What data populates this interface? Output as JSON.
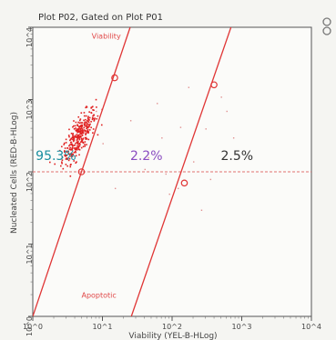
{
  "plot": {
    "title": "Plot P02, Gated on Plot P01",
    "xlabel": "Viability (YEL-B-HLog)",
    "ylabel": "Nucleated Cells (RED-B-HLog)"
  },
  "chart_data": {
    "type": "scatter",
    "title": "Plot P02, Gated on Plot P01",
    "xlabel": "Viability (YEL-B-HLog)",
    "ylabel": "Nucleated Cells (RED-B-HLog)",
    "x_scale": "log",
    "y_scale": "log",
    "xlim": [
      1,
      10000
    ],
    "ylim": [
      1,
      10000
    ],
    "x_ticks": [
      "10^0",
      "10^1",
      "10^2",
      "10^3",
      "10^4"
    ],
    "y_ticks": [
      "10^0",
      "10^1",
      "10^2",
      "10^3",
      "10^4"
    ],
    "quadrant_percentages": [
      {
        "label": "95.3%",
        "color": "#1a8fa0"
      },
      {
        "label": "2.2%",
        "color": "#8a4cc0"
      },
      {
        "label": "2.5%",
        "color": "#333333"
      }
    ],
    "gate_labels": [
      "Viability",
      "Apoptotic"
    ],
    "horizontal_threshold_y": 100,
    "gate_lines": [
      {
        "name": "Viability",
        "points": [
          [
            1,
            1
          ],
          [
            25,
            10000
          ]
        ],
        "handles": [
          [
            15,
            2000
          ],
          [
            5,
            100
          ]
        ]
      },
      {
        "name": "Apoptotic",
        "points": [
          [
            26,
            1
          ],
          [
            700,
            10000
          ]
        ],
        "handles": [
          [
            400,
            1600
          ],
          [
            150,
            70
          ]
        ]
      }
    ],
    "main_cluster": {
      "x_center": 4.5,
      "y_center": 320,
      "n_points": 320,
      "color": "#e02020"
    },
    "sparse_events": [
      [
        40,
        110
      ],
      [
        80,
        95
      ],
      [
        120,
        60
      ],
      [
        200,
        140
      ],
      [
        300,
        400
      ],
      [
        500,
        1100
      ],
      [
        600,
        700
      ],
      [
        15,
        60
      ],
      [
        10,
        250
      ],
      [
        8,
        700
      ],
      [
        25,
        520
      ],
      [
        70,
        300
      ],
      [
        170,
        1500
      ],
      [
        90,
        50
      ],
      [
        350,
        80
      ],
      [
        750,
        300
      ],
      [
        260,
        30
      ],
      [
        130,
        420
      ],
      [
        60,
        900
      ],
      [
        45,
        160
      ]
    ]
  }
}
